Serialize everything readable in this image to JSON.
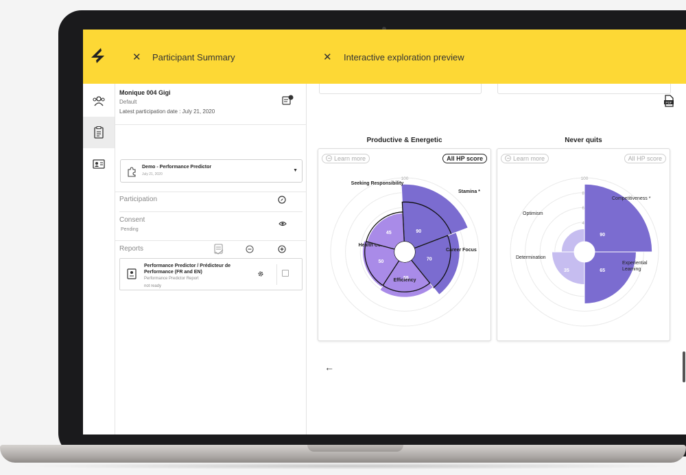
{
  "header": {
    "left_title": "Participant Summary",
    "right_title": "Interactive exploration preview",
    "close_symbol": "✕",
    "accent": "#fdd835"
  },
  "participant": {
    "name": "Monique 004 Gigi",
    "group": "Default",
    "latest_date": "Latest participation date : July 21, 2020"
  },
  "assessment_select": {
    "title": "Demo - Performance Predictor",
    "date": "July 21, 2020"
  },
  "sections": {
    "participation": "Participation",
    "consent": "Consent",
    "consent_status": "Pending",
    "reports": "Reports"
  },
  "report_item": {
    "title": "Performance Predictor / Prédicteur de Performance (FR and EN)",
    "subtitle": "Performance Predictor Report",
    "status": "not ready"
  },
  "cards": [
    {
      "title": "Productive & Energetic",
      "learn_more": "Learn more",
      "hp_score": "All HP score",
      "hp_active": true
    },
    {
      "title": "Never quits",
      "learn_more": "Learn more",
      "hp_score": "All HP score",
      "hp_active": false
    }
  ],
  "back_symbol": "←",
  "chart_data": [
    {
      "type": "polar-area",
      "ticks": [
        "100",
        "80",
        "60",
        "40"
      ],
      "rmax": 100,
      "segments": [
        {
          "label": "Stamina *",
          "value": 90,
          "hp": 100,
          "color": "#7b6cd0"
        },
        {
          "label": "Career Focus",
          "value": 70,
          "hp": 90,
          "color": "#7b6cd0"
        },
        {
          "label": "Efficiency",
          "value": 55,
          "hp": 75,
          "color": "#a98be8"
        },
        {
          "label": "Health Consciousness",
          "value": 50,
          "hp": 75,
          "color": "#a98be8"
        },
        {
          "label": "Seeking Responsibility",
          "value": 45,
          "hp": 75,
          "color": "#a98be8"
        }
      ]
    },
    {
      "type": "polar-area",
      "ticks": [
        "100",
        "80",
        "60",
        "40"
      ],
      "rmax": 100,
      "segments": [
        {
          "label": "Competitiveness *",
          "value": 90,
          "color": "#7b6cd0"
        },
        {
          "label": "Experiential Learning",
          "value": 65,
          "color": "#7b6cd0"
        },
        {
          "label": "Determination",
          "value": 35,
          "color": "#c6bdf0"
        },
        {
          "label": "Optimism",
          "value": 20,
          "color": "#c6bdf0"
        }
      ]
    }
  ]
}
